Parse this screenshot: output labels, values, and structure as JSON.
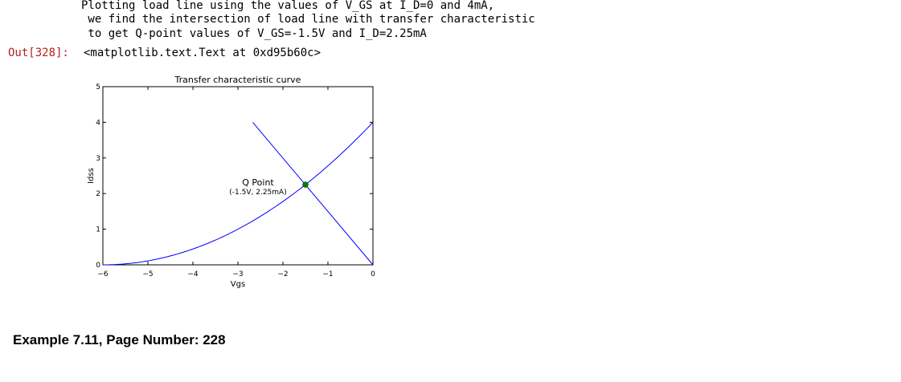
{
  "cell": {
    "stdout_lines": [
      "Plotting load line using the values of V_GS at I_D=0 and 4mA,",
      " we find the intersection of load line with transfer characteristic",
      " to get Q-point values of V_GS=-1.5V and I_D=2.25mA"
    ],
    "out_prompt": "Out[328]:",
    "out_text": "<matplotlib.text.Text at 0xd95b60c>"
  },
  "heading": "Example 7.11, Page Number: 228",
  "chart_data": {
    "type": "line",
    "title": "Transfer characteristic curve",
    "xlabel": "Vgs",
    "ylabel": "Idss",
    "xlim": [
      -6,
      0
    ],
    "ylim": [
      0,
      5
    ],
    "xticks": [
      -6,
      -5,
      -4,
      -3,
      -2,
      -1,
      0
    ],
    "xtick_labels": [
      "−6",
      "−5",
      "−4",
      "−3",
      "−2",
      "−1",
      "0"
    ],
    "yticks": [
      0,
      1,
      2,
      3,
      4,
      5
    ],
    "ytick_labels": [
      "0",
      "1",
      "2",
      "3",
      "4",
      "5"
    ],
    "grid": false,
    "series": [
      {
        "kind": "transfer-curve",
        "color": "#0000ff",
        "formula": "Id = 4*(1 - Vgs/(-6))^2",
        "x_start": -6,
        "x_end": 0
      },
      {
        "kind": "load-line",
        "color": "#0000ff",
        "x": [
          -2.67,
          0
        ],
        "y": [
          4,
          0
        ]
      }
    ],
    "points": [
      {
        "x": -1.5,
        "y": 2.25,
        "color": "#008000"
      }
    ],
    "annotations": [
      {
        "text": "Q Point",
        "x": -3.0,
        "y": 2.3
      },
      {
        "text": "(-1.5V, 2.25mA)",
        "x": -3.0,
        "y": 2.05
      }
    ]
  }
}
